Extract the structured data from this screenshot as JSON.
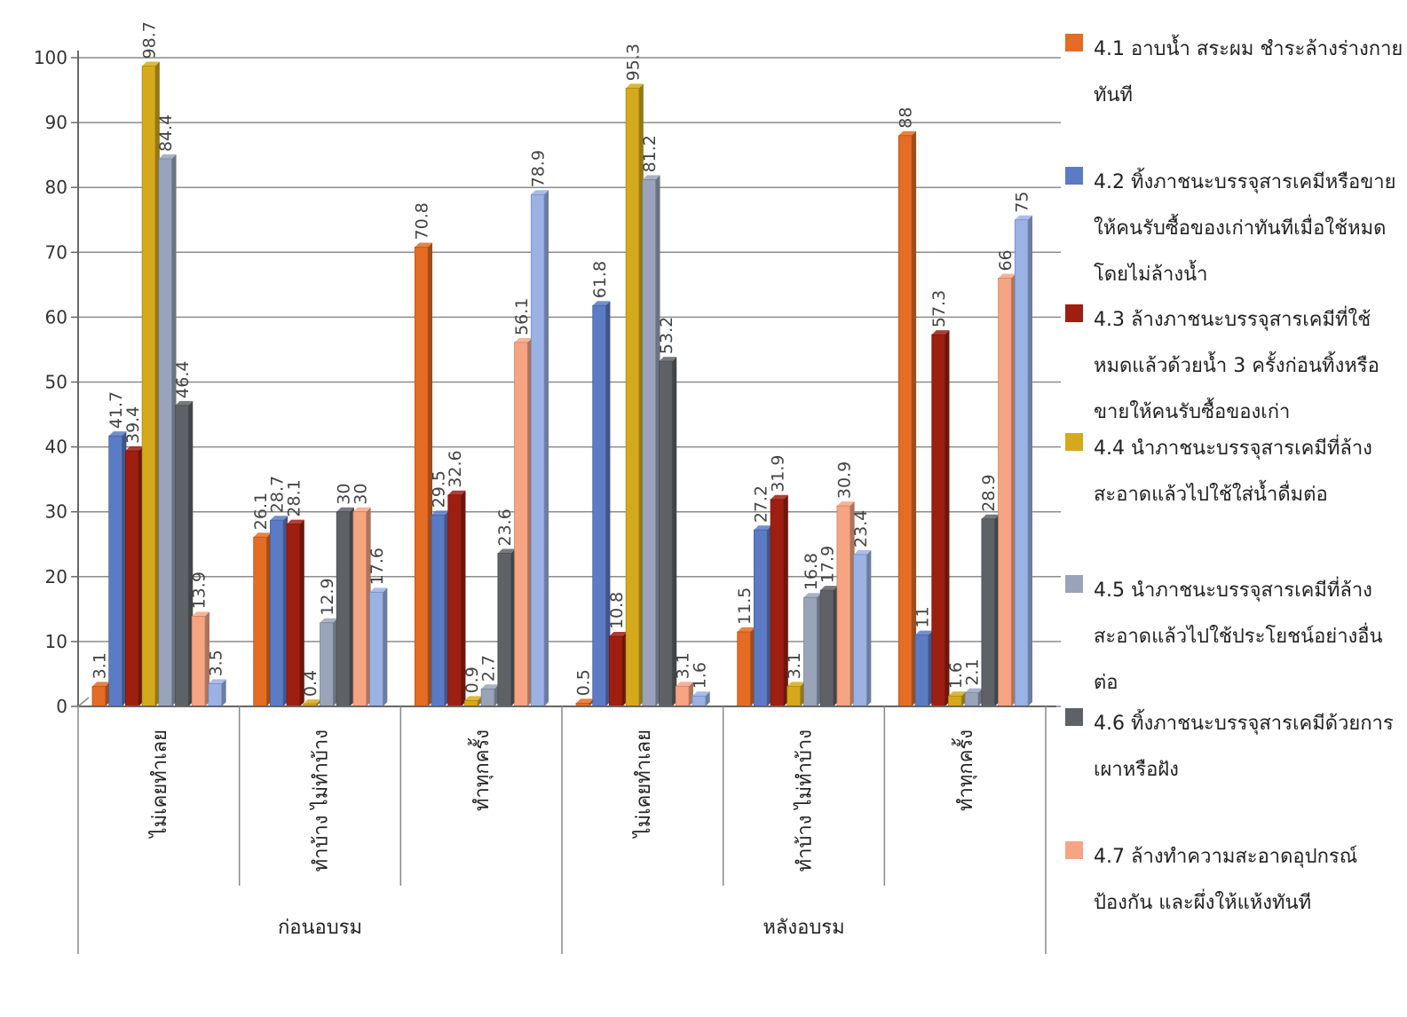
{
  "chart_data": {
    "type": "bar",
    "title": "",
    "xlabel": "",
    "ylabel": "",
    "ylim": [
      0,
      100
    ],
    "yticks": [
      0,
      10,
      20,
      30,
      40,
      50,
      60,
      70,
      80,
      90,
      100
    ],
    "grid": true,
    "legend_position": "right",
    "groups": [
      {
        "label": "ก่อนอบรม",
        "categories": [
          "ไม่เคยทำเลย",
          "ทำบ้าง ไม่ทำบ้าง",
          "ทำทุกครั้ง"
        ]
      },
      {
        "label": "หลังอบรม",
        "categories": [
          "ไม่เคยทำเลย",
          "ทำบ้าง ไม่ทำบ้าง",
          "ทำทุกครั้ง"
        ]
      }
    ],
    "series": [
      {
        "name": "4.1 อาบน้ำ สระผม ชำระล้างร่างกายทันที",
        "color": "#E46C24",
        "values": [
          3.1,
          26.1,
          70.8,
          0.5,
          11.5,
          88
        ]
      },
      {
        "name": "4.2 ทิ้งภาชนะบรรจุสารเคมีหรือขายให้คนรับซื้อของเก่าทันทีเมื่อใช้หมดโดยไม่ล้างน้ำ",
        "color": "#5B7BC4",
        "values": [
          41.7,
          28.7,
          29.5,
          61.8,
          27.2,
          11
        ]
      },
      {
        "name": "4.3 ล้างภาชนะบรรจุสารเคมีที่ใช้หมดแล้วด้วยน้ำ 3 ครั้งก่อนทิ้งหรือขายให้คนรับซื้อของเก่า",
        "color": "#9E1E10",
        "values": [
          39.4,
          28.1,
          32.6,
          10.8,
          31.9,
          57.3
        ]
      },
      {
        "name": "4.4 นำภาชนะบรรจุสารเคมีที่ล้างสะอาดแล้วไปใช้ใส่น้ำดื่มต่อ",
        "color": "#D4AA1C",
        "values": [
          98.7,
          0.4,
          0.9,
          95.3,
          3.1,
          1.6
        ]
      },
      {
        "name": "4.5 นำภาชนะบรรจุสารเคมีที่ล้างสะอาดแล้วไปใช้ประโยชน์อย่างอื่นต่อ",
        "color": "#99A4BA",
        "values": [
          84.4,
          12.9,
          2.7,
          81.2,
          16.8,
          2.1
        ]
      },
      {
        "name": "4.6 ทิ้งภาชนะบรรจุสารเคมีด้วยการเผาหรือฝัง",
        "color": "#5E6266",
        "values": [
          46.4,
          30,
          23.6,
          53.2,
          17.9,
          28.9
        ]
      },
      {
        "name": "4.7 ล้างทำความสะอาดอุปกรณ์ป้องกัน และผึ่งให้แห้งทันที",
        "color": "#F7A482",
        "values": [
          13.9,
          30,
          56.1,
          3.1,
          30.9,
          66
        ]
      },
      {
        "name": "",
        "color": "#9AB2E4",
        "values": [
          3.5,
          17.6,
          78.9,
          1.6,
          23.4,
          75
        ]
      }
    ]
  }
}
